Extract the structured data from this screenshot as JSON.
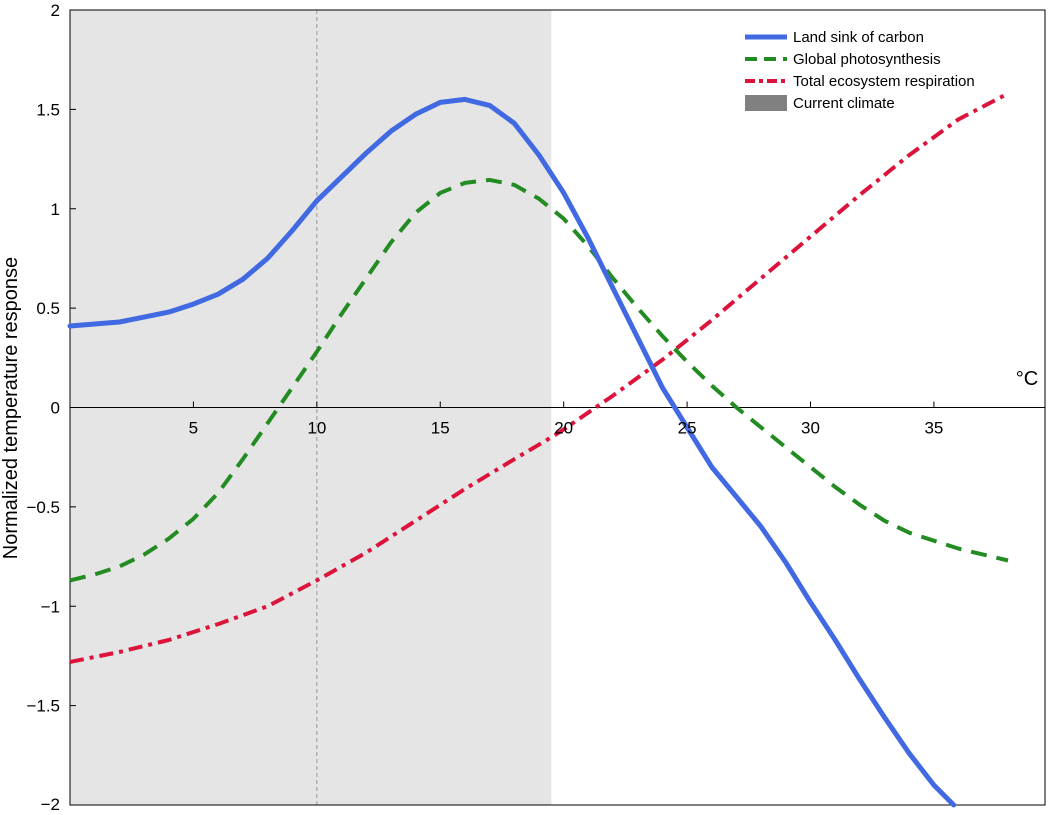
{
  "chart_data": {
    "type": "line",
    "title": "",
    "xlabel": "°C",
    "ylabel": "Normalized temperature response",
    "xlim": [
      0,
      39.5
    ],
    "ylim": [
      -2,
      2
    ],
    "x_ticks": [
      5,
      10,
      15,
      20,
      25,
      30,
      35
    ],
    "y_ticks": [
      -2,
      -1.5,
      -1,
      -0.5,
      0,
      0.5,
      1,
      1.5,
      2
    ],
    "y_tick_labels": [
      "−2",
      "−1.5",
      "−1",
      "−0.5",
      "0",
      "0.5",
      "1",
      "1.5",
      "2"
    ],
    "grid": false,
    "legend_position": "top-right",
    "current_climate_band": {
      "x_start": 0,
      "x_end": 19.5,
      "color": "#e5e5e5",
      "legend_color": "#808080"
    },
    "reference_line_x": 10,
    "series": [
      {
        "name": "Land sink of carbon",
        "color": "#4169e1",
        "style": "solid",
        "points": [
          [
            0,
            0.41
          ],
          [
            1,
            0.42
          ],
          [
            2,
            0.43
          ],
          [
            3,
            0.455
          ],
          [
            4,
            0.48
          ],
          [
            5,
            0.52
          ],
          [
            6,
            0.57
          ],
          [
            7,
            0.645
          ],
          [
            8,
            0.75
          ],
          [
            9,
            0.89
          ],
          [
            10,
            1.04
          ],
          [
            11,
            1.16
          ],
          [
            12,
            1.28
          ],
          [
            13,
            1.39
          ],
          [
            14,
            1.475
          ],
          [
            15,
            1.535
          ],
          [
            16,
            1.55
          ],
          [
            17,
            1.52
          ],
          [
            18,
            1.43
          ],
          [
            19,
            1.27
          ],
          [
            20,
            1.08
          ],
          [
            21,
            0.85
          ],
          [
            22,
            0.6
          ],
          [
            23,
            0.35
          ],
          [
            24,
            0.1
          ],
          [
            25,
            -0.1
          ],
          [
            26,
            -0.3
          ],
          [
            27,
            -0.45
          ],
          [
            28,
            -0.6
          ],
          [
            29,
            -0.78
          ],
          [
            30,
            -0.98
          ],
          [
            31,
            -1.17
          ],
          [
            32,
            -1.37
          ],
          [
            33,
            -1.56
          ],
          [
            34,
            -1.74
          ],
          [
            35,
            -1.9
          ],
          [
            35.8,
            -2.0
          ]
        ]
      },
      {
        "name": "Global photosynthesis",
        "color": "#228b22",
        "style": "dashed",
        "points": [
          [
            0,
            -0.87
          ],
          [
            1,
            -0.84
          ],
          [
            2,
            -0.8
          ],
          [
            3,
            -0.74
          ],
          [
            4,
            -0.66
          ],
          [
            5,
            -0.56
          ],
          [
            6,
            -0.43
          ],
          [
            7,
            -0.26
          ],
          [
            8,
            -0.08
          ],
          [
            9,
            0.1
          ],
          [
            10,
            0.28
          ],
          [
            11,
            0.47
          ],
          [
            12,
            0.65
          ],
          [
            13,
            0.83
          ],
          [
            14,
            0.98
          ],
          [
            15,
            1.08
          ],
          [
            16,
            1.13
          ],
          [
            17,
            1.145
          ],
          [
            18,
            1.12
          ],
          [
            19,
            1.05
          ],
          [
            20,
            0.95
          ],
          [
            21,
            0.81
          ],
          [
            22,
            0.65
          ],
          [
            23,
            0.5
          ],
          [
            24,
            0.36
          ],
          [
            25,
            0.23
          ],
          [
            26,
            0.11
          ],
          [
            27,
            0.0
          ],
          [
            28,
            -0.1
          ],
          [
            29,
            -0.2
          ],
          [
            30,
            -0.3
          ],
          [
            31,
            -0.4
          ],
          [
            32,
            -0.49
          ],
          [
            33,
            -0.57
          ],
          [
            34,
            -0.63
          ],
          [
            35,
            -0.67
          ],
          [
            36,
            -0.71
          ],
          [
            37,
            -0.74
          ],
          [
            38,
            -0.77
          ]
        ]
      },
      {
        "name": "Total ecosystem respiration",
        "color": "#dc143c",
        "style": "dashdot",
        "points": [
          [
            0,
            -1.28
          ],
          [
            2,
            -1.23
          ],
          [
            4,
            -1.17
          ],
          [
            6,
            -1.09
          ],
          [
            8,
            -1.0
          ],
          [
            10,
            -0.87
          ],
          [
            12,
            -0.73
          ],
          [
            14,
            -0.57
          ],
          [
            16,
            -0.41
          ],
          [
            18,
            -0.26
          ],
          [
            19.5,
            -0.15
          ],
          [
            20,
            -0.11
          ],
          [
            22,
            0.06
          ],
          [
            24,
            0.24
          ],
          [
            26,
            0.44
          ],
          [
            28,
            0.65
          ],
          [
            30,
            0.86
          ],
          [
            32,
            1.07
          ],
          [
            34,
            1.27
          ],
          [
            36,
            1.45
          ],
          [
            38,
            1.58
          ]
        ]
      }
    ],
    "legend_entries": [
      {
        "label": "Land sink of carbon",
        "color": "#4169e1",
        "style": "solid"
      },
      {
        "label": "Global photosynthesis",
        "color": "#228b22",
        "style": "dashed"
      },
      {
        "label": "Total ecosystem respiration",
        "color": "#dc143c",
        "style": "dashdot"
      },
      {
        "label": "Current climate",
        "color": "#808080",
        "style": "patch"
      }
    ]
  }
}
